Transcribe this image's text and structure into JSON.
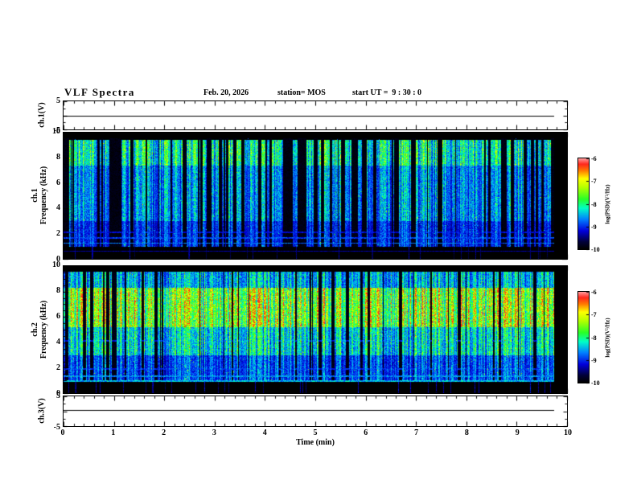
{
  "header": {
    "title": "VLF Spectra",
    "date": "Feb. 20, 2026",
    "station": "station= MOS",
    "start_ut": "start UT =  9 : 30 : 0"
  },
  "axes": {
    "x": {
      "label": "Time (min)",
      "min": 0,
      "max": 10,
      "ticks": [
        0,
        1,
        2,
        3,
        4,
        5,
        6,
        7,
        8,
        9,
        10
      ]
    },
    "freq": {
      "min": 0,
      "max": 10,
      "ticks": [
        0,
        2,
        4,
        6,
        8,
        10
      ]
    },
    "volt": {
      "min": -5,
      "max": 5,
      "ticks": [
        5,
        -5
      ]
    }
  },
  "panels": {
    "ch1v": {
      "label": "ch.1(V)"
    },
    "spec1": {
      "label_line1": "ch.1",
      "label_line2": "Frequency (kHz)"
    },
    "spec2": {
      "label_line1": "ch.2",
      "label_line2": "Frequency (kHz)"
    },
    "ch3v": {
      "label": "ch.3(V)"
    }
  },
  "colorbar": {
    "label": "log(PSD)(V²/Hz)",
    "ticks": [
      -6,
      -7,
      -8,
      -9,
      -10
    ],
    "min": -10,
    "max": -6
  },
  "colors": {
    "background": "#ffffff",
    "spectrogram_background": "#000000",
    "axis": "#000000"
  },
  "chart_data": {
    "type": "heatmap",
    "subtype": "vlf-spectrogram",
    "time_axis_min": [
      0,
      10
    ],
    "data_end_min": 9.74,
    "colorbar_range_log_psd": [
      -10,
      -6
    ],
    "panels": [
      {
        "name": "ch1_spectrogram",
        "freq_range_khz": [
          0,
          10
        ],
        "active_band_khz": [
          0.95,
          9.55
        ],
        "streak_density": 0.6,
        "intensity_scale": 0.78,
        "gain_bands": [
          [
            7.4,
            9.4,
            1.15
          ],
          [
            3.0,
            7.4,
            0.85
          ],
          [
            0.95,
            3.0,
            0.62
          ]
        ],
        "horizontal_lines_khz_level": [
          [
            2.1,
            0.32
          ],
          [
            1.65,
            0.42
          ],
          [
            1.25,
            0.5
          ],
          [
            0.6,
            0.25
          ]
        ],
        "seed": 12345,
        "description": "Dense vertical blue/cyan impulsive streaks (sferics) between ~1 and 9.5 kHz on black background with occasional green-yellow bursts; narrow cyan horizontal carrier lines near 1-2 kHz; black bands above 9.5 kHz and below 1 kHz"
      },
      {
        "name": "ch2_spectrogram",
        "freq_range_khz": [
          0,
          10
        ],
        "active_band_khz": [
          0.95,
          9.55
        ],
        "streak_density": 0.82,
        "intensity_scale": 0.93,
        "gain_bands": [
          [
            5.2,
            8.3,
            1.35
          ],
          [
            8.3,
            9.55,
            0.8
          ],
          [
            3.0,
            5.2,
            0.9
          ],
          [
            0.95,
            3.0,
            0.6
          ]
        ],
        "horizontal_lines_khz_level": [
          [
            4.1,
            0.3
          ],
          [
            1.9,
            0.3
          ],
          [
            1.35,
            0.45
          ],
          [
            0.95,
            0.52
          ]
        ],
        "seed": 99173,
        "description": "Intense vertical streaks with hot green-yellow-red band around 5-8 kHz, blue/cyan at other frequencies, horizontal carrier lines near 1-1.5 kHz, black bands at band edges"
      }
    ],
    "voltage_traces": [
      {
        "name": "ch1_voltage",
        "range_v": [
          -5,
          5
        ],
        "constant_value_v": 0.0
      },
      {
        "name": "ch3_voltage",
        "range_v": [
          -5,
          5
        ],
        "constant_value_v": 0.4
      }
    ]
  }
}
